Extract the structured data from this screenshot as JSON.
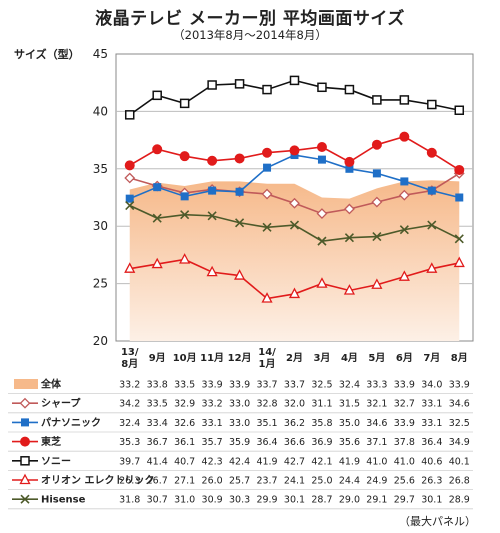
{
  "header": {
    "title": "液晶テレビ メーカー別 平均画面サイズ",
    "subtitle": "（2013年8月～2014年8月）",
    "ylabel": "サイズ（型）",
    "note": "（最大パネル）"
  },
  "chart_data": {
    "type": "line",
    "title": "液晶テレビ メーカー別 平均画面サイズ",
    "subtitle": "（2013年8月～2014年8月）",
    "ylabel": "サイズ（型）",
    "ylim": [
      20,
      45
    ],
    "yticks": [
      "20",
      "25",
      "30",
      "35",
      "40",
      "45"
    ],
    "grid": true,
    "categories": [
      [
        "13/",
        "8月"
      ],
      [
        "9月"
      ],
      [
        "10月"
      ],
      [
        "11月"
      ],
      [
        "12月"
      ],
      [
        "14/",
        "1月"
      ],
      [
        "2月"
      ],
      [
        "3月"
      ],
      [
        "4月"
      ],
      [
        "5月"
      ],
      [
        "6月"
      ],
      [
        "7月"
      ],
      [
        "8月"
      ]
    ],
    "series": [
      {
        "name": "全体",
        "kind": "area",
        "color": "#f6b98a",
        "values": [
          33.2,
          33.8,
          33.5,
          33.9,
          33.9,
          33.7,
          33.7,
          32.5,
          32.4,
          33.3,
          33.9,
          34.0,
          33.9
        ],
        "labels": [
          "33.2",
          "33.8",
          "33.5",
          "33.9",
          "33.9",
          "33.7",
          "33.7",
          "32.5",
          "32.4",
          "33.3",
          "33.9",
          "34.0",
          "33.9"
        ]
      },
      {
        "name": "シャープ",
        "kind": "line",
        "color": "#c05a5a",
        "marker": "diamond-open",
        "values": [
          34.2,
          33.5,
          32.9,
          33.2,
          33.0,
          32.8,
          32.0,
          31.1,
          31.5,
          32.1,
          32.7,
          33.1,
          34.6
        ],
        "labels": [
          "34.2",
          "33.5",
          "32.9",
          "33.2",
          "33.0",
          "32.8",
          "32.0",
          "31.1",
          "31.5",
          "32.1",
          "32.7",
          "33.1",
          "34.6"
        ]
      },
      {
        "name": "パナソニック",
        "kind": "line",
        "color": "#1f6fc7",
        "marker": "square",
        "values": [
          32.4,
          33.4,
          32.6,
          33.1,
          33.0,
          35.1,
          36.2,
          35.8,
          35.0,
          34.6,
          33.9,
          33.1,
          32.5
        ],
        "labels": [
          "32.4",
          "33.4",
          "32.6",
          "33.1",
          "33.0",
          "35.1",
          "36.2",
          "35.8",
          "35.0",
          "34.6",
          "33.9",
          "33.1",
          "32.5"
        ]
      },
      {
        "name": "東芝",
        "kind": "line",
        "color": "#e11b1b",
        "marker": "circle",
        "values": [
          35.3,
          36.7,
          36.1,
          35.7,
          35.9,
          36.4,
          36.6,
          36.9,
          35.6,
          37.1,
          37.8,
          36.4,
          34.9
        ],
        "labels": [
          "35.3",
          "36.7",
          "36.1",
          "35.7",
          "35.9",
          "36.4",
          "36.6",
          "36.9",
          "35.6",
          "37.1",
          "37.8",
          "36.4",
          "34.9"
        ]
      },
      {
        "name": "ソニー",
        "kind": "line",
        "color": "#111111",
        "marker": "square-open",
        "values": [
          39.7,
          41.4,
          40.7,
          42.3,
          42.4,
          41.9,
          42.7,
          42.1,
          41.9,
          41.0,
          41.0,
          40.6,
          40.1
        ],
        "labels": [
          "39.7",
          "41.4",
          "40.7",
          "42.3",
          "42.4",
          "41.9",
          "42.7",
          "42.1",
          "41.9",
          "41.0",
          "41.0",
          "40.6",
          "40.1"
        ]
      },
      {
        "name": "オリオン エレクトリック",
        "kind": "line",
        "color": "#e11b1b",
        "marker": "triangle-open",
        "values": [
          26.3,
          26.7,
          27.1,
          26.0,
          25.7,
          23.7,
          24.1,
          25.0,
          24.4,
          24.9,
          25.6,
          26.3,
          26.8
        ],
        "labels": [
          "26.3",
          "26.7",
          "27.1",
          "26.0",
          "25.7",
          "23.7",
          "24.1",
          "25.0",
          "24.4",
          "24.9",
          "25.6",
          "26.3",
          "26.8"
        ]
      },
      {
        "name": "Hisense",
        "kind": "line",
        "color": "#4d5a2a",
        "marker": "x",
        "values": [
          31.8,
          30.7,
          31.0,
          30.9,
          30.3,
          29.9,
          30.1,
          28.7,
          29.0,
          29.1,
          29.7,
          30.1,
          28.9
        ],
        "labels": [
          "31.8",
          "30.7",
          "31.0",
          "30.9",
          "30.3",
          "29.9",
          "30.1",
          "28.7",
          "29.0",
          "29.1",
          "29.7",
          "30.1",
          "28.9"
        ]
      }
    ]
  }
}
